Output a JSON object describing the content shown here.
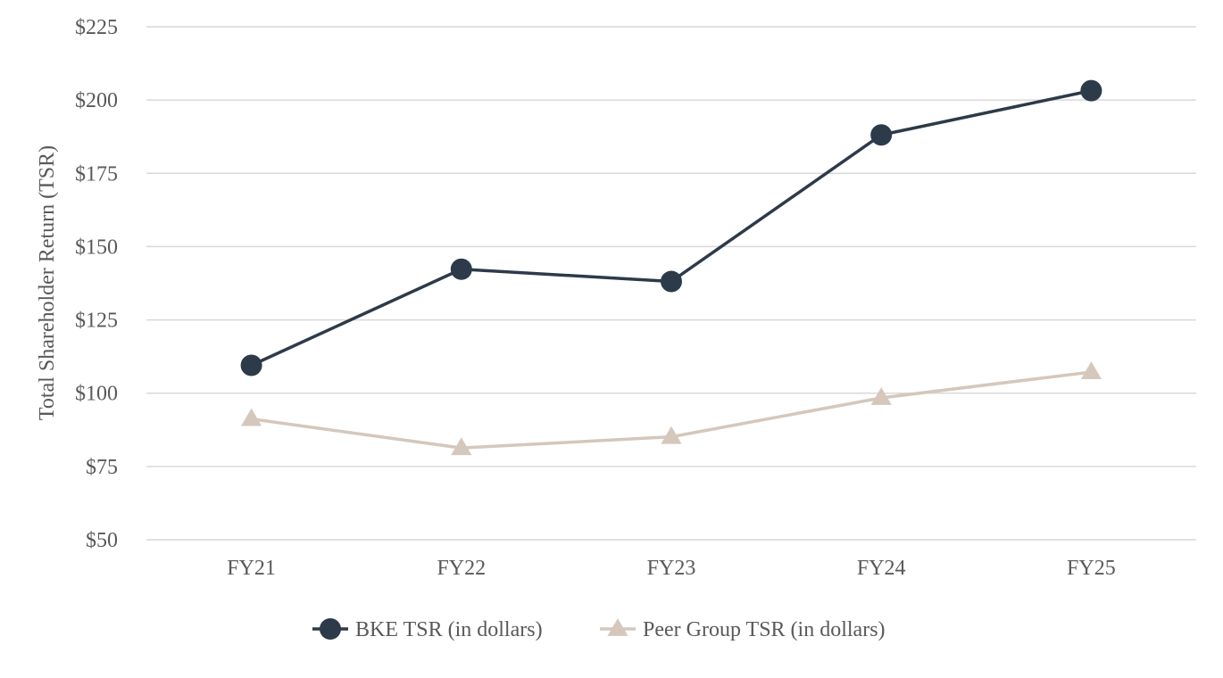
{
  "chart_data": {
    "type": "line",
    "title": "",
    "xlabel": "",
    "ylabel": "Total Shareholder Return (TSR)",
    "categories": [
      "FY21",
      "FY22",
      "FY23",
      "FY24",
      "FY25"
    ],
    "ylim": [
      50,
      225
    ],
    "yticks": [
      50,
      75,
      100,
      125,
      150,
      175,
      200,
      225
    ],
    "ytick_labels": [
      "$50",
      "$75",
      "$100",
      "$125",
      "$150",
      "$175",
      "$200",
      "$225"
    ],
    "grid": true,
    "legend_position": "bottom-center",
    "series": [
      {
        "name": "BKE TSR (in dollars)",
        "values": [
          109.5,
          142.3,
          138.1,
          188.1,
          203.2
        ],
        "color": "#2d3a4a",
        "marker": "circle"
      },
      {
        "name": "Peer Group TSR (in dollars)",
        "values": [
          91.2,
          81.3,
          85.1,
          98.4,
          107.2
        ],
        "color": "#d5c7bb",
        "marker": "triangle"
      }
    ]
  }
}
